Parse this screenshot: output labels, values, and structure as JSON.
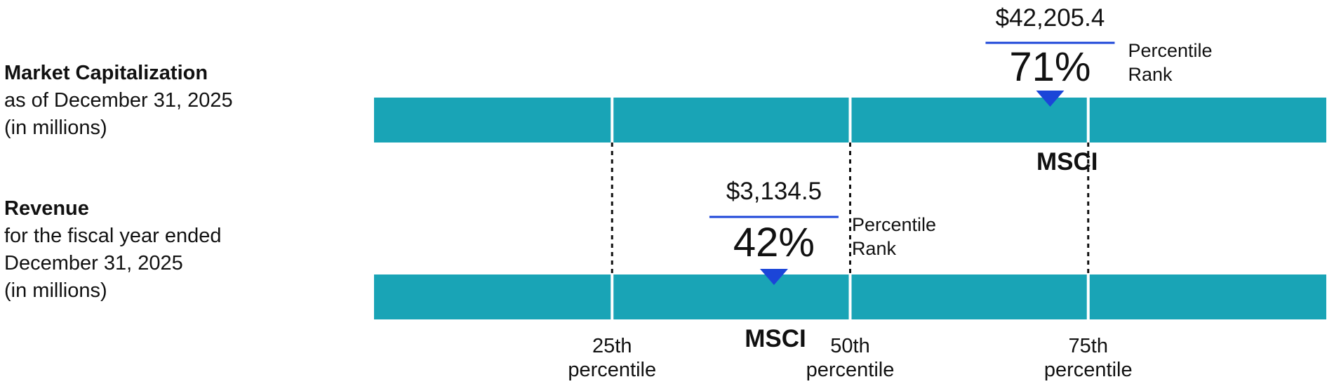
{
  "rows": [
    {
      "title": "Market Capitalization",
      "subtitle": "as of December 31, 2025\n(in millions)"
    },
    {
      "title": "Revenue",
      "subtitle": "for the fiscal year ended\nDecember 31, 2025\n(in millions)"
    }
  ],
  "chart_data": {
    "type": "percentile-rank",
    "percentile_ticks": [
      {
        "value": 25,
        "label_line1": "25th",
        "label_line2": "percentile"
      },
      {
        "value": 50,
        "label_line1": "50th",
        "label_line2": "percentile"
      },
      {
        "value": 75,
        "label_line1": "75th",
        "label_line2": "percentile"
      }
    ],
    "marker_label": "MSCI",
    "rank_caption_line1": "Percentile",
    "rank_caption_line2": "Rank",
    "series": [
      {
        "value_label": "$42,205.4",
        "rank_label": "71%",
        "percentile": 71
      },
      {
        "value_label": "$3,134.5",
        "rank_label": "42%",
        "percentile": 42
      }
    ],
    "colors": {
      "bar": "#19a4b6",
      "marker": "#1b45d8",
      "divider": "#ffffff"
    }
  }
}
